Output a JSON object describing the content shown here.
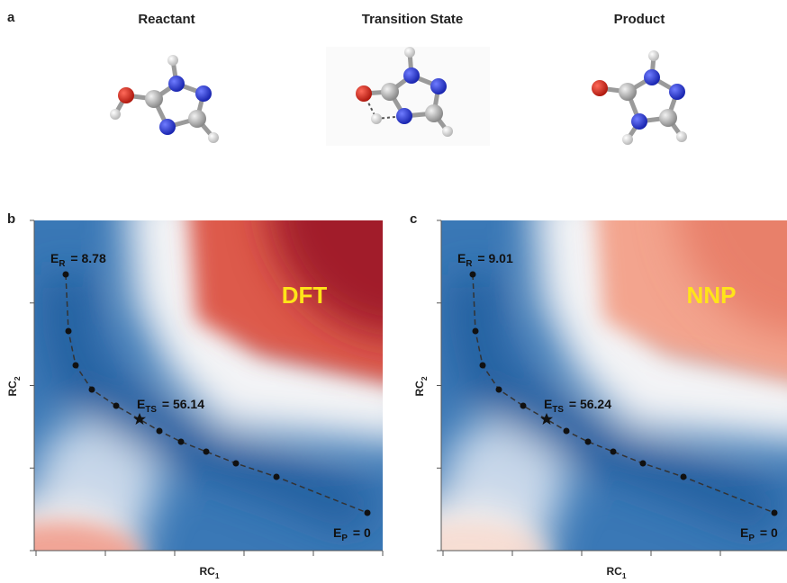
{
  "figure": {
    "panel_labels": [
      "a",
      "b",
      "c"
    ],
    "structures": [
      "Reactant",
      "Transition State",
      "Product"
    ],
    "x_axis": {
      "base": "RC",
      "sub": "1"
    },
    "y_axis": {
      "base": "RC",
      "sub": "2"
    },
    "maps": [
      {
        "method": "DFT",
        "reactant": {
          "symbol": "E",
          "sub": "R",
          "text": "= 8.78"
        },
        "transition": {
          "symbol": "E",
          "sub": "TS",
          "text": "= 56.14"
        },
        "product": {
          "symbol": "E",
          "sub": "P",
          "text": "= 0"
        }
      },
      {
        "method": "NNP",
        "reactant": {
          "symbol": "E",
          "sub": "R",
          "text": "= 9.01"
        },
        "transition": {
          "symbol": "E",
          "sub": "TS",
          "text": "= 56.24"
        },
        "product": {
          "symbol": "E",
          "sub": "P",
          "text": "= 0"
        }
      }
    ]
  }
}
